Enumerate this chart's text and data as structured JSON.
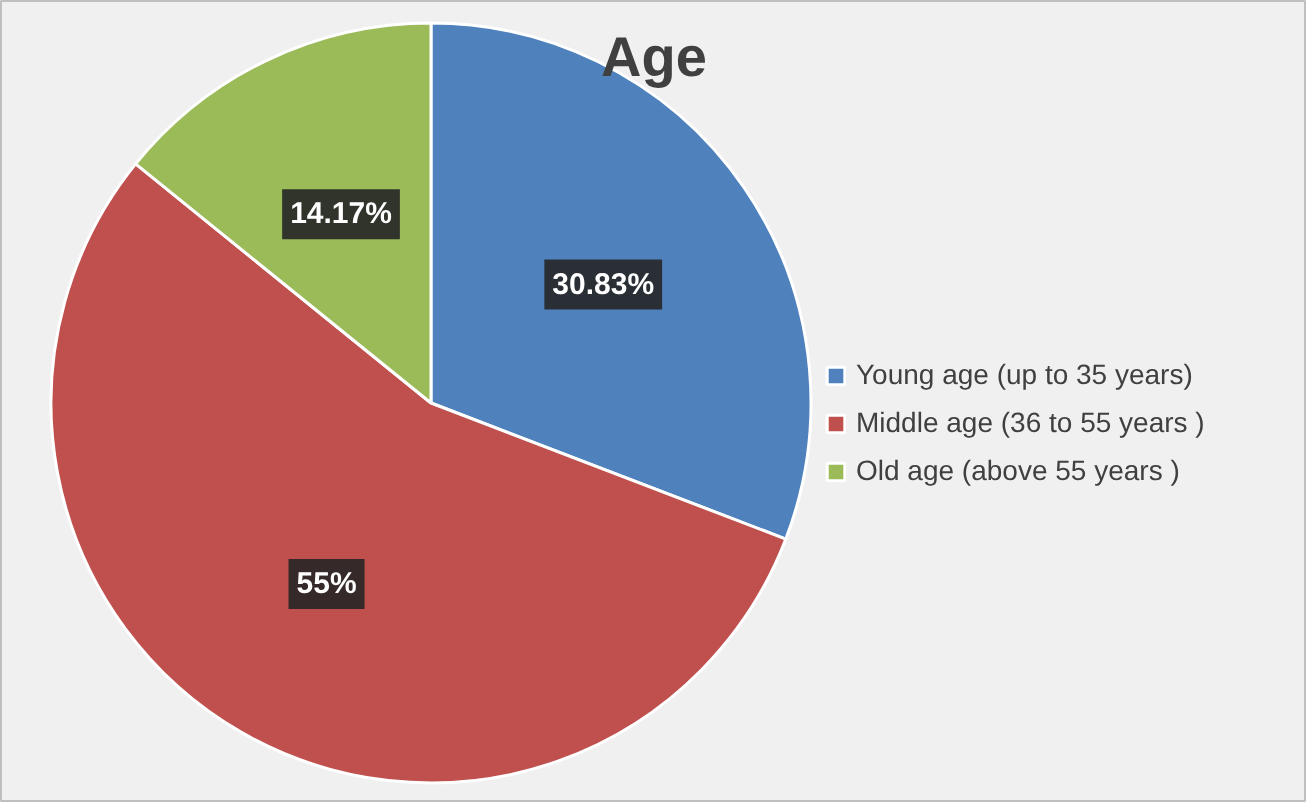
{
  "chart_data": {
    "type": "pie",
    "title": "Age",
    "categories": [
      "Young age (up to 35 years)",
      "Middle age (36 to 55 years )",
      "Old age (above 55 years )"
    ],
    "values": [
      30.83,
      55,
      14.17
    ],
    "colors": [
      "#4f81bd",
      "#c0504d",
      "#9bbb59"
    ],
    "value_labels": [
      "30.83%",
      "55%",
      "14.17%"
    ],
    "legend": "right"
  }
}
